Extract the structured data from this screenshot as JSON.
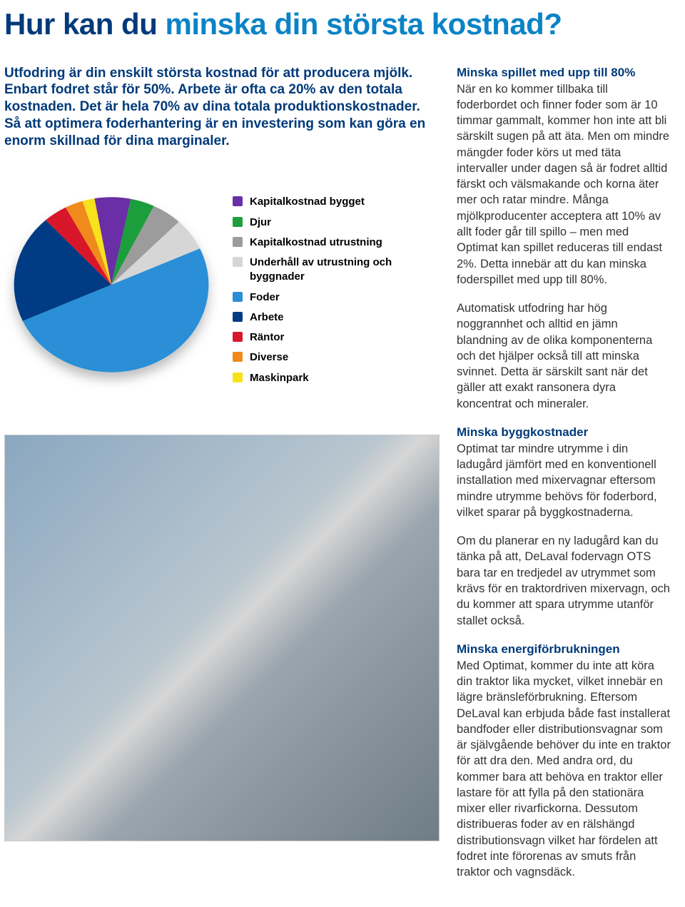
{
  "title": {
    "part1": "Hur kan du ",
    "part2": "minska din största kostnad?"
  },
  "intro": "Utfodring är din enskilt största kostnad för att producera mjölk. Enbart fodret står för 50%. Arbete är ofta ca 20% av den totala kostnaden. Det är hela 70% av dina totala produktionskostnader. Så att optimera foderhantering är en investering som kan göra en enorm skillnad för dina marginaler.",
  "chart": {
    "type": "pie",
    "background_color": "#ffffff",
    "slices": [
      {
        "label": "Kapitalkostnad bygget",
        "value": 6,
        "color": "#6a2fa6"
      },
      {
        "label": "Djur",
        "value": 4,
        "color": "#1e9e3d"
      },
      {
        "label": "Kapitalkostnad utrustning",
        "value": 5,
        "color": "#9c9c9c"
      },
      {
        "label": "Underhåll av utrustning och byggnader",
        "value": 6,
        "color": "#d6d6d6"
      },
      {
        "label": "Foder",
        "value": 50,
        "color": "#2a8fd6"
      },
      {
        "label": "Arbete",
        "value": 20,
        "color": "#053a84"
      },
      {
        "label": "Räntor",
        "value": 4,
        "color": "#d8182a"
      },
      {
        "label": "Diverse",
        "value": 3,
        "color": "#f08a1a"
      },
      {
        "label": "Maskinpark",
        "value": 2,
        "color": "#f7e21a"
      }
    ],
    "legend_font_weight": "bold",
    "legend_font_size": 15,
    "swatch_size": 14
  },
  "right": {
    "section1": {
      "heading": "Minska spillet med upp till 80%",
      "body": "När en ko kommer tillbaka till foderbordet och finner foder som är 10 timmar gammalt, kommer hon inte att bli särskilt sugen på att äta. Men om mindre mängder foder körs ut med täta intervaller under dagen så är fodret alltid färskt och välsmakande och korna äter mer och ratar mindre. Många mjölkproducenter acceptera att 10% av allt foder går till spillo – men med Optimat kan spillet reduceras till endast 2%. Detta innebär att du kan minska foderspillet med upp till 80%."
    },
    "section2": {
      "body": "Automatisk utfodring har hög noggrannhet och alltid en jämn blandning av de olika komponenterna och det hjälper också till att minska svinnet. Detta är särskilt sant när det gäller att exakt ransonera dyra koncentrat och mineraler."
    },
    "section3": {
      "heading": "Minska byggkostnader",
      "body": "Optimat tar mindre utrymme i din ladugård jämfört med en konventionell installation med mixervagnar eftersom mindre utrymme behövs för foderbord, vilket sparar på byggkostnaderna."
    },
    "section4": {
      "body": "Om du planerar en ny ladugård kan du tänka på att,  DeLaval fodervagn OTS bara tar en tredjedel av utrymmet som krävs för en traktordriven mixervagn, och du kommer att spara utrymme utanför stallet också."
    },
    "section5": {
      "heading": "Minska energiförbrukningen",
      "body": "Med Optimat, kommer du inte att köra din traktor lika mycket, vilket innebär en lägre bränsleförbrukning. Eftersom DeLaval kan erbjuda både fast installerat bandfoder eller distributionsvagnar som är självgående behöver du inte en traktor för att dra den. Med andra ord, du kommer bara att behöva en traktor eller lastare för att fylla på den stationära mixer eller rivarfickorna. Dessutom distribueras foder av en rälshängd distributionsvagn vilket har fördelen att fodret inte förorenas av smuts från traktor och vagnsdäck."
    }
  }
}
